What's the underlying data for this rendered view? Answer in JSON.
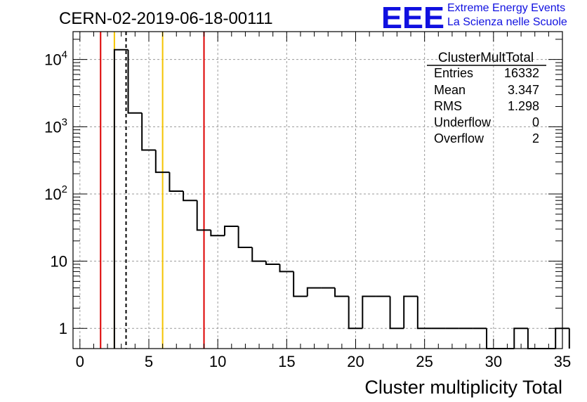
{
  "title": "CERN-02-2019-06-18-00111",
  "logo": {
    "mark": "EEE",
    "line1": "Extreme Energy Events",
    "line2": "La Scienza nelle Scuole",
    "color": "#1010e0"
  },
  "stats": {
    "name": "ClusterMultTotal",
    "rows": [
      {
        "label": "Entries",
        "value": "16332"
      },
      {
        "label": "Mean",
        "value": "3.347"
      },
      {
        "label": "RMS",
        "value": "1.298"
      },
      {
        "label": "Underflow",
        "value": "0"
      },
      {
        "label": "Overflow",
        "value": "2"
      }
    ]
  },
  "chart_data": {
    "type": "bar",
    "histogram": true,
    "xlabel": "Cluster multiplicity Total",
    "ylabel": "",
    "xlim": [
      -0.5,
      35.0
    ],
    "ylim": [
      0.5,
      26000
    ],
    "yscale": "log",
    "grid": true,
    "x_ticks": [
      "0",
      "5",
      "10",
      "15",
      "20",
      "25",
      "30",
      "35"
    ],
    "y_ticks": [
      {
        "base": "1",
        "exp": ""
      },
      {
        "base": "10",
        "exp": ""
      },
      {
        "base": "10",
        "exp": "2"
      },
      {
        "base": "10",
        "exp": "3"
      },
      {
        "base": "10",
        "exp": "4"
      }
    ],
    "bin_width": 1,
    "bin_low_edges": [
      2.5,
      3.5,
      4.5,
      5.5,
      6.5,
      7.5,
      8.5,
      9.5,
      10.5,
      11.5,
      12.5,
      13.5,
      14.5,
      15.5,
      16.5,
      17.5,
      18.5,
      19.5,
      20.5,
      21.5,
      22.5,
      23.5,
      24.5,
      25.5,
      26.5,
      27.5,
      28.5,
      29.5,
      30.5,
      31.5,
      32.5,
      33.5,
      34.5
    ],
    "counts": [
      14000,
      1600,
      450,
      210,
      110,
      80,
      29,
      24,
      33,
      16,
      10,
      9,
      7,
      3,
      4,
      4,
      3,
      1,
      3,
      3,
      1,
      3,
      1,
      1,
      1,
      1,
      1,
      0,
      0,
      1,
      0,
      0,
      1
    ],
    "vertical_lines": [
      {
        "x": 1.5,
        "color": "#dd0000",
        "style": "solid"
      },
      {
        "x": 2.5,
        "color": "#f5c400",
        "style": "solid"
      },
      {
        "x": 3.347,
        "color": "#000000",
        "style": "dashed"
      },
      {
        "x": 6.0,
        "color": "#f5c400",
        "style": "solid"
      },
      {
        "x": 9.0,
        "color": "#dd0000",
        "style": "solid"
      }
    ]
  }
}
